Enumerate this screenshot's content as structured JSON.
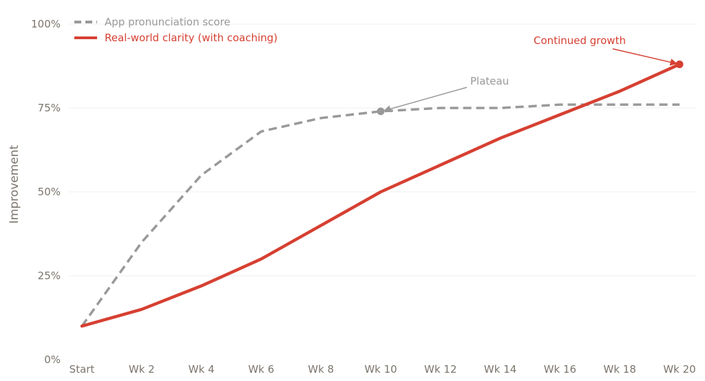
{
  "chart_data": {
    "type": "line",
    "title": "",
    "xlabel": "",
    "ylabel": "Improvement",
    "categories": [
      "Start",
      "Wk 2",
      "Wk 4",
      "Wk 6",
      "Wk 8",
      "Wk 10",
      "Wk 12",
      "Wk 14",
      "Wk 16",
      "Wk 18",
      "Wk 20"
    ],
    "ylim": [
      0,
      100
    ],
    "y_ticks": [
      {
        "value": 0,
        "label": "0%"
      },
      {
        "value": 25,
        "label": "25%"
      },
      {
        "value": 50,
        "label": "50%"
      },
      {
        "value": 75,
        "label": "75%"
      },
      {
        "value": 100,
        "label": "100%"
      }
    ],
    "grid": "horizontal",
    "legend_position": "top-left",
    "series": [
      {
        "name": "App pronunciation score",
        "color": "#999999",
        "style": "dashed",
        "values": [
          10,
          35,
          55,
          68,
          72,
          74,
          75,
          75,
          76,
          76,
          76
        ]
      },
      {
        "name": "Real-world clarity (with coaching)",
        "color": "#d64032",
        "style": "solid",
        "values": [
          10,
          15,
          22,
          30,
          40,
          50,
          58,
          66,
          73,
          80,
          88
        ]
      }
    ],
    "annotations": [
      {
        "text": "Plateau",
        "series": 0,
        "index": 5,
        "color": "#999999"
      },
      {
        "text": "Continued growth",
        "series": 1,
        "index": 10,
        "color": "#d64032"
      }
    ]
  }
}
